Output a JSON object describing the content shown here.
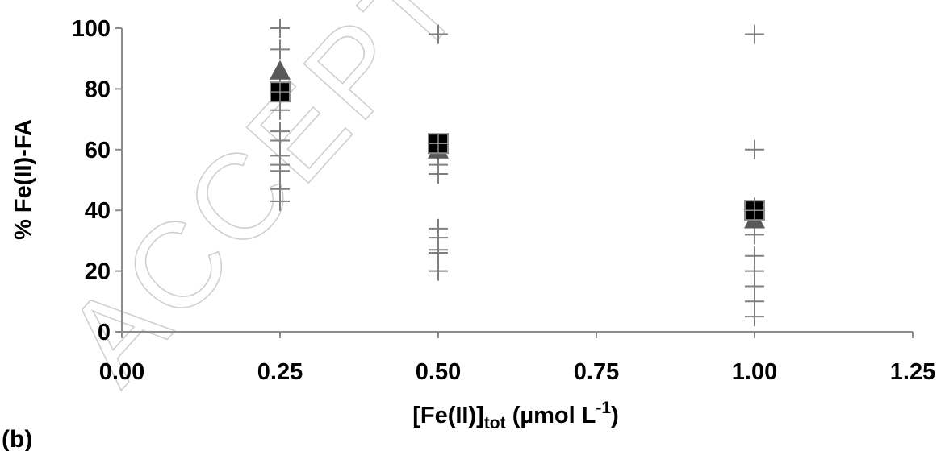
{
  "watermark": "ACCEPTED",
  "panel_label": "(b)",
  "chart_data": {
    "type": "scatter",
    "ylabel": "% Fe(II)-FA",
    "xlabel_main": "[Fe(II)]",
    "xlabel_sub": "tot",
    "xlabel_unit": " (µmol L",
    "xlabel_exp": "-1",
    "xlabel_close": ")",
    "xlim": [
      0,
      1.25
    ],
    "ylim": [
      0,
      100
    ],
    "x_ticks": [
      0,
      0.25,
      0.5,
      0.75,
      1.0,
      1.25
    ],
    "x_tick_labels": [
      "0.00",
      "0.25",
      "0.50",
      "0.75",
      "1.00",
      "1.25"
    ],
    "y_ticks": [
      0,
      20,
      40,
      60,
      80,
      100
    ],
    "y_tick_labels": [
      "0",
      "20",
      "40",
      "60",
      "80",
      "100"
    ],
    "grid": false,
    "legend": false,
    "colors": {
      "plus": "#7f7f7f",
      "triangle": "#595959",
      "square": "#000000",
      "square_border": "#8c8c8c",
      "axis": "#8c8c8c"
    },
    "series": [
      {
        "marker": "plus",
        "points": [
          [
            0.25,
            100
          ],
          [
            0.25,
            93
          ],
          [
            0.25,
            81
          ],
          [
            0.25,
            76
          ],
          [
            0.25,
            73
          ],
          [
            0.25,
            66
          ],
          [
            0.25,
            63
          ],
          [
            0.25,
            58
          ],
          [
            0.25,
            55
          ],
          [
            0.25,
            53
          ],
          [
            0.25,
            47
          ],
          [
            0.25,
            43
          ],
          [
            0.5,
            98
          ],
          [
            0.5,
            62
          ],
          [
            0.5,
            55
          ],
          [
            0.5,
            52
          ],
          [
            0.5,
            34
          ],
          [
            0.5,
            31
          ],
          [
            0.5,
            27
          ],
          [
            0.5,
            26
          ],
          [
            0.5,
            20
          ],
          [
            1.0,
            98
          ],
          [
            1.0,
            60
          ],
          [
            1.0,
            41
          ],
          [
            1.0,
            32
          ],
          [
            1.0,
            25
          ],
          [
            1.0,
            20
          ],
          [
            1.0,
            15
          ],
          [
            1.0,
            10
          ],
          [
            1.0,
            5
          ]
        ]
      },
      {
        "marker": "triangle",
        "points": [
          [
            0.25,
            86
          ],
          [
            0.5,
            60
          ],
          [
            1.0,
            37
          ]
        ]
      },
      {
        "marker": "square",
        "points": [
          [
            0.25,
            79
          ],
          [
            0.5,
            62
          ],
          [
            1.0,
            40
          ]
        ]
      }
    ]
  }
}
